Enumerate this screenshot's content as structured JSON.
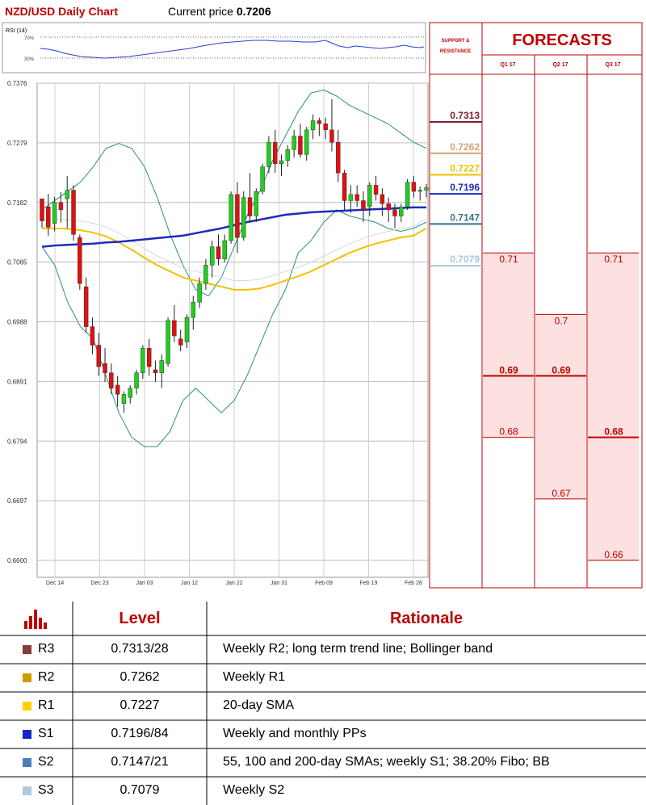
{
  "header": {
    "title": "NZD/USD Daily Chart",
    "price_label": "Current price",
    "price_value": "0.7206"
  },
  "rsi": {
    "label": "RSI (14)",
    "upper": "70%",
    "lower": "30%"
  },
  "chart_data": {
    "type": "candlestick",
    "title": "NZD/USD Daily Chart",
    "y_ticks": [
      "0.7376",
      "0.7279",
      "0.7182",
      "0.7085",
      "0.6988",
      "0.6891",
      "0.6794",
      "0.6697",
      "0.6600"
    ],
    "ylim": [
      0.66,
      0.7376
    ],
    "x_ticks": [
      "Dec 14",
      "Dec 23",
      "Jan 03",
      "Jan 12",
      "Jan 22",
      "Jan 31",
      "Feb 09",
      "Feb 19",
      "Feb 28"
    ],
    "grid": true,
    "candles": [
      [
        0.7188,
        0.7185,
        0.7141,
        0.7152
      ],
      [
        0.7175,
        0.7196,
        0.7128,
        0.7142
      ],
      [
        0.7148,
        0.7191,
        0.7135,
        0.7182
      ],
      [
        0.7182,
        0.7199,
        0.7149,
        0.717
      ],
      [
        0.7188,
        0.7225,
        0.714,
        0.7202
      ],
      [
        0.7202,
        0.721,
        0.712,
        0.713
      ],
      [
        0.7125,
        0.713,
        0.704,
        0.705
      ],
      [
        0.7045,
        0.706,
        0.697,
        0.698
      ],
      [
        0.698,
        0.6995,
        0.6935,
        0.695
      ],
      [
        0.695,
        0.697,
        0.69,
        0.6915
      ],
      [
        0.692,
        0.6945,
        0.689,
        0.6905
      ],
      [
        0.6905,
        0.692,
        0.687,
        0.688
      ],
      [
        0.6885,
        0.69,
        0.685,
        0.687
      ],
      [
        0.6855,
        0.6875,
        0.684,
        0.687
      ],
      [
        0.6865,
        0.6885,
        0.6855,
        0.688
      ],
      [
        0.688,
        0.691,
        0.687,
        0.6905
      ],
      [
        0.6905,
        0.695,
        0.6895,
        0.6945
      ],
      [
        0.6945,
        0.696,
        0.69,
        0.6915
      ],
      [
        0.691,
        0.6925,
        0.689,
        0.6905
      ],
      [
        0.6905,
        0.6935,
        0.688,
        0.6925
      ],
      [
        0.692,
        0.6995,
        0.6915,
        0.699
      ],
      [
        0.699,
        0.7015,
        0.6955,
        0.6965
      ],
      [
        0.696,
        0.6975,
        0.694,
        0.695
      ],
      [
        0.6955,
        0.7,
        0.6945,
        0.6995
      ],
      [
        0.6995,
        0.703,
        0.6975,
        0.702
      ],
      [
        0.702,
        0.706,
        0.701,
        0.705
      ],
      [
        0.705,
        0.709,
        0.704,
        0.708
      ],
      [
        0.708,
        0.712,
        0.706,
        0.711
      ],
      [
        0.711,
        0.713,
        0.708,
        0.709
      ],
      [
        0.709,
        0.713,
        0.7085,
        0.712
      ],
      [
        0.712,
        0.72,
        0.7115,
        0.7195
      ],
      [
        0.7195,
        0.7215,
        0.71,
        0.7125
      ],
      [
        0.7125,
        0.72,
        0.712,
        0.719
      ],
      [
        0.719,
        0.723,
        0.715,
        0.716
      ],
      [
        0.716,
        0.7205,
        0.715,
        0.72
      ],
      [
        0.72,
        0.7245,
        0.7195,
        0.724
      ],
      [
        0.724,
        0.729,
        0.723,
        0.728
      ],
      [
        0.728,
        0.73,
        0.723,
        0.7245
      ],
      [
        0.7245,
        0.726,
        0.7225,
        0.725
      ],
      [
        0.725,
        0.7275,
        0.724,
        0.7268
      ],
      [
        0.7268,
        0.73,
        0.7255,
        0.729
      ],
      [
        0.729,
        0.731,
        0.7255,
        0.726
      ],
      [
        0.726,
        0.7305,
        0.725,
        0.73
      ],
      [
        0.73,
        0.7325,
        0.7285,
        0.7315
      ],
      [
        0.7315,
        0.732,
        0.729,
        0.731
      ],
      [
        0.731,
        0.732,
        0.7285,
        0.73
      ],
      [
        0.73,
        0.735,
        0.7265,
        0.728
      ],
      [
        0.728,
        0.73,
        0.7215,
        0.723
      ],
      [
        0.723,
        0.7235,
        0.717,
        0.7185
      ],
      [
        0.7185,
        0.721,
        0.7165,
        0.7195
      ],
      [
        0.7195,
        0.721,
        0.7175,
        0.7185
      ],
      [
        0.7185,
        0.72,
        0.715,
        0.717
      ],
      [
        0.7175,
        0.7215,
        0.716,
        0.721
      ],
      [
        0.721,
        0.7225,
        0.7185,
        0.7195
      ],
      [
        0.7195,
        0.7205,
        0.716,
        0.718
      ],
      [
        0.718,
        0.719,
        0.715,
        0.717
      ],
      [
        0.717,
        0.718,
        0.714,
        0.716
      ],
      [
        0.716,
        0.718,
        0.715,
        0.7175
      ],
      [
        0.7175,
        0.722,
        0.717,
        0.7215
      ],
      [
        0.7215,
        0.7225,
        0.719,
        0.72
      ],
      [
        0.72,
        0.7208,
        0.7185,
        0.7202
      ],
      [
        0.7202,
        0.7212,
        0.719,
        0.7206
      ]
    ],
    "sma_20": [
      0.714,
      0.714,
      0.7139,
      0.7137,
      0.7133,
      0.7127,
      0.7117,
      0.7105,
      0.7092,
      0.708,
      0.707,
      0.706,
      0.7055,
      0.705,
      0.7045,
      0.704,
      0.704,
      0.7042,
      0.7048,
      0.7055,
      0.7062,
      0.707,
      0.708,
      0.709,
      0.71,
      0.7108,
      0.7115,
      0.712,
      0.7125,
      0.7128,
      0.714
    ],
    "sma_200": [
      0.711,
      0.7112,
      0.7113,
      0.7114,
      0.7115,
      0.7117,
      0.7118,
      0.712,
      0.7122,
      0.7124,
      0.7126,
      0.7128,
      0.7132,
      0.7136,
      0.714,
      0.7145,
      0.715,
      0.7154,
      0.7158,
      0.7162,
      0.7164,
      0.7166,
      0.7167,
      0.7168,
      0.7169,
      0.717,
      0.7171,
      0.7172,
      0.7173,
      0.7174,
      0.7174
    ]
  },
  "levels_panel": {
    "title": "SUPPORT & RESISTANCE",
    "items": [
      {
        "value": "0.7313",
        "price": 0.7313,
        "color": "#7b2030"
      },
      {
        "value": "0.7262",
        "price": 0.7262,
        "color": "#d4a373"
      },
      {
        "value": "0.7227",
        "price": 0.7227,
        "color": "#f2c200"
      },
      {
        "value": "0.7196",
        "price": 0.7196,
        "color": "#1a2bbf"
      },
      {
        "value": "0.7147",
        "price": 0.7147,
        "color": "#3a6f8a"
      },
      {
        "value": "0.7079",
        "price": 0.7079,
        "color": "#a7c7dc"
      }
    ]
  },
  "forecasts": {
    "title": "FORECASTS",
    "quarters": [
      "Q1 17",
      "Q2 17",
      "Q3 17"
    ],
    "bands": [
      {
        "high": "0.71",
        "avg": "0.69",
        "low": "0.68",
        "high_v": 0.71,
        "avg_v": 0.69,
        "low_v": 0.68
      },
      {
        "high": "0.7",
        "avg": "0.69",
        "low": "0.67",
        "high_v": 0.7,
        "avg_v": 0.69,
        "low_v": 0.67
      },
      {
        "high": "0.71",
        "avg": "0.68",
        "low": "0.66",
        "high_v": 0.71,
        "avg_v": 0.68,
        "low_v": 0.66
      }
    ]
  },
  "table": {
    "header_level": "Level",
    "header_rationale": "Rationale",
    "rows": [
      {
        "name": "R3",
        "level": "0.7313/28",
        "rationale": "Weekly R2; long term trend line; Bollinger band",
        "color": "#8b3a3a"
      },
      {
        "name": "R2",
        "level": "0.7262",
        "rationale": "Weekly R1",
        "color": "#d19b00"
      },
      {
        "name": "R1",
        "level": "0.7227",
        "rationale": "20-day SMA",
        "color": "#ffd000"
      },
      {
        "name": "S1",
        "level": "0.7196/84",
        "rationale": "Weekly and monthly PPs",
        "color": "#1426c8"
      },
      {
        "name": "S2",
        "level": "0.7147/21",
        "rationale": "55, 100 and 200-day SMAs; weekly S1; 38.20% Fibo; BB",
        "color": "#4a7fb5"
      },
      {
        "name": "S3",
        "level": "0.7079",
        "rationale": "Weekly S2",
        "color": "#b0c8e0"
      }
    ]
  }
}
